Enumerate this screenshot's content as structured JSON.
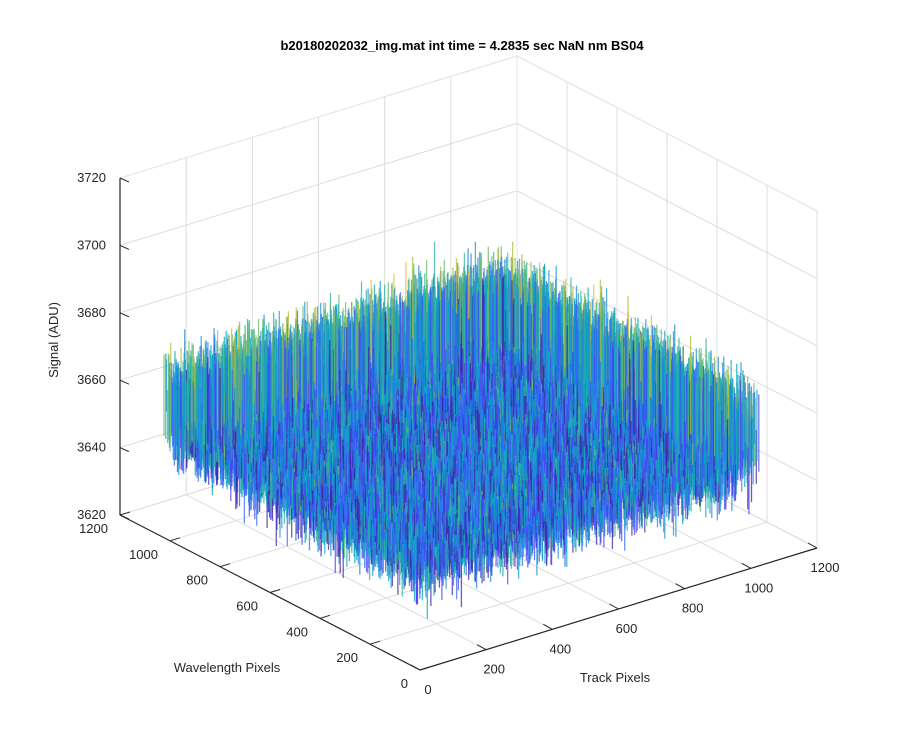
{
  "chart_data": {
    "type": "surface",
    "title": "b20180202032_img.mat int time = 4.2835 sec  NaN nm BS04",
    "xlabel": "Track Pixels",
    "ylabel": "Wavelength Pixels",
    "zlabel": "Signal (ADU)",
    "xlim": [
      0,
      1200
    ],
    "ylim": [
      0,
      1200
    ],
    "zlim": [
      3620,
      3720
    ],
    "xticks": [
      "0",
      "200",
      "400",
      "600",
      "800",
      "1000",
      "1200"
    ],
    "yticks": [
      "0",
      "200",
      "400",
      "600",
      "800",
      "1000",
      "1200"
    ],
    "zticks": [
      "3620",
      "3640",
      "3660",
      "3680",
      "3700",
      "3720"
    ],
    "surface": {
      "x_range": [
        0,
        1024
      ],
      "y_range": [
        0,
        1024
      ],
      "mean_signal": 3658,
      "approx_min": 3625,
      "approx_max": 3700,
      "colormap": "parula"
    },
    "grid": true,
    "view": "3d-default"
  }
}
